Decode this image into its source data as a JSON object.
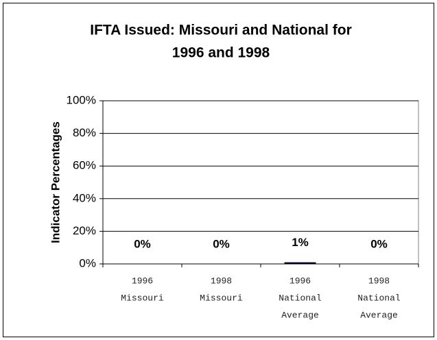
{
  "chart_data": {
    "type": "bar",
    "title": [
      "IFTA Issued: Missouri and National for",
      "1996 and 1998"
    ],
    "y_label": "Indicator Percentages",
    "categories": [
      [
        "1996",
        "Missouri"
      ],
      [
        "1998",
        "Missouri"
      ],
      [
        "1996",
        "National",
        "Average"
      ],
      [
        "1998",
        "National",
        "Average"
      ]
    ],
    "values": [
      0,
      0,
      1,
      0
    ],
    "value_labels": [
      "0%",
      "0%",
      "1%",
      "0%"
    ],
    "color": "#000033",
    "ylim": [
      0,
      100
    ],
    "yticks": [
      {
        "value": 0,
        "label": "0%"
      },
      {
        "value": 20,
        "label": "20%"
      },
      {
        "value": 40,
        "label": "40%"
      },
      {
        "value": 60,
        "label": "60%"
      },
      {
        "value": 80,
        "label": "80%"
      },
      {
        "value": 100,
        "label": "100%"
      }
    ],
    "grid": true
  }
}
